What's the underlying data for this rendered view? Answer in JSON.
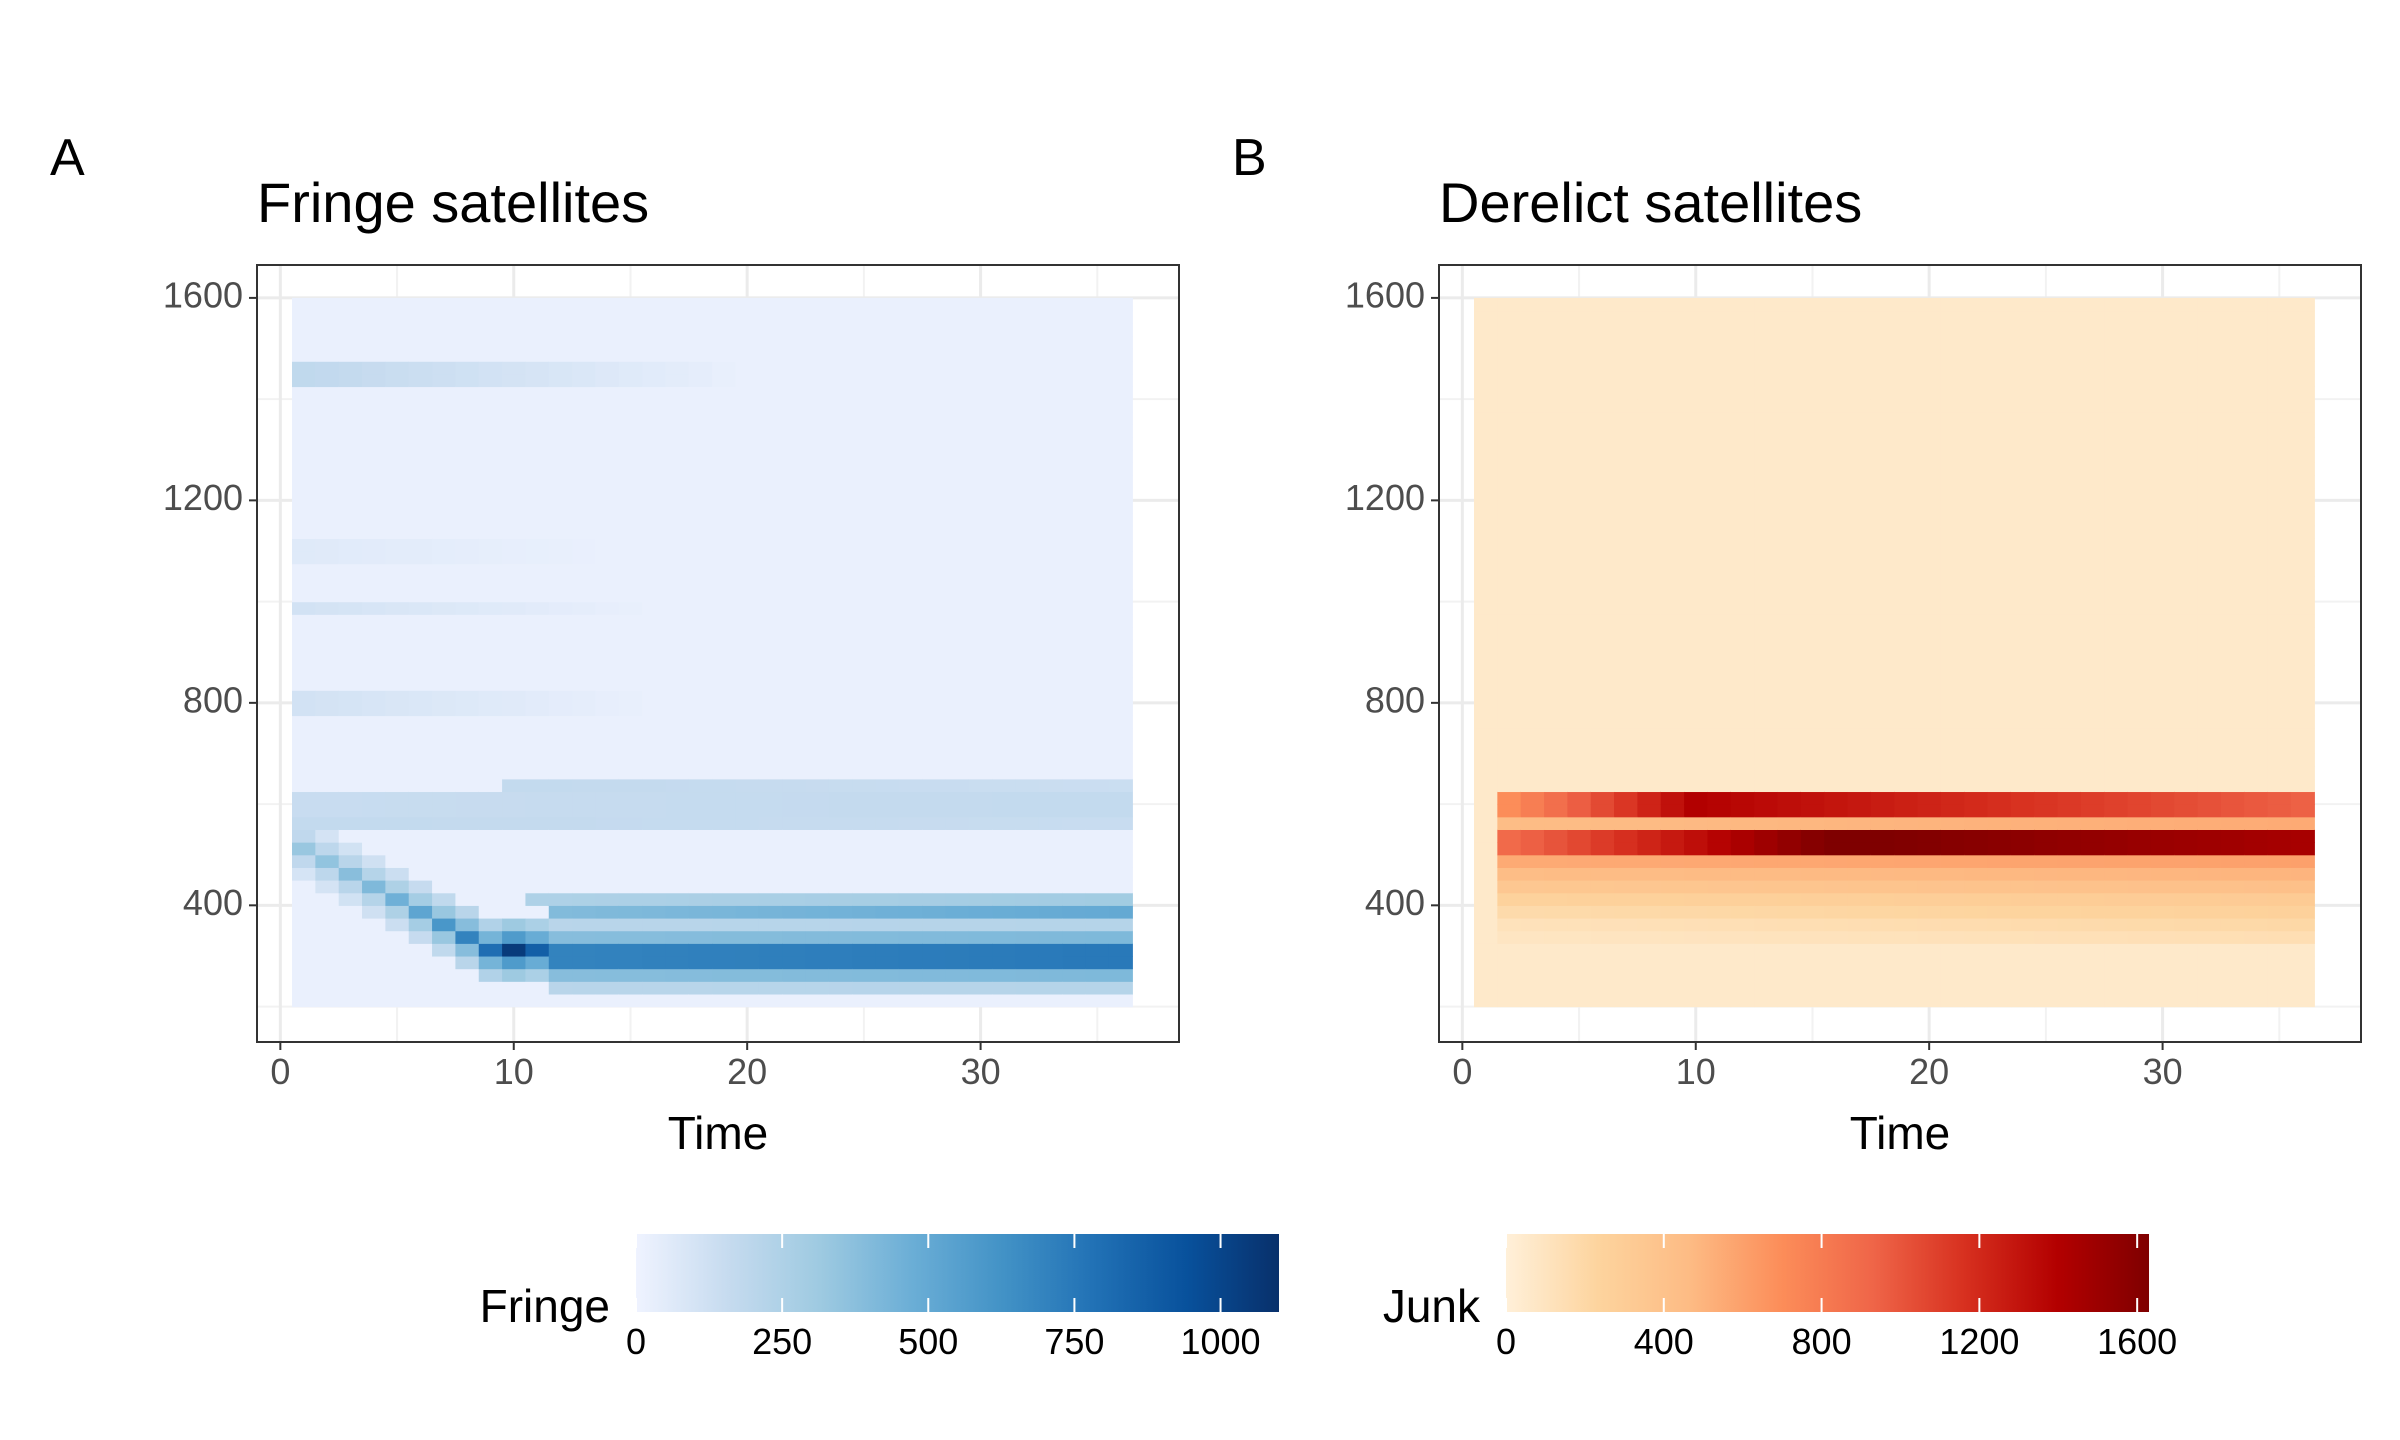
{
  "figure": {
    "legend_position": "bottom"
  },
  "chart_data": [
    {
      "type": "heatmap",
      "panel_label": "A",
      "title": "Fringe satellites",
      "xlabel": "Time",
      "ylabel": "",
      "xlim": [
        -1,
        38.5
      ],
      "ylim": [
        130,
        1665
      ],
      "x_ticks": [
        0,
        10,
        20,
        30
      ],
      "y_ticks": [
        400,
        800,
        1200,
        1600
      ],
      "grid": true,
      "x_range": [
        1,
        36
      ],
      "y_range": [
        200,
        1600
      ],
      "y_bin_width": 25,
      "background_value": 20,
      "ridge": {
        "description": "diagonal band descending from ~500 at t=0 to ~300 by t=11, then persisting",
        "path": [
          [
            1,
            510
          ],
          [
            2,
            480
          ],
          [
            3,
            460
          ],
          [
            4,
            435
          ],
          [
            5,
            410
          ],
          [
            6,
            385
          ],
          [
            7,
            360
          ],
          [
            8,
            340
          ],
          [
            9,
            320
          ],
          [
            10,
            305
          ],
          [
            12,
            300
          ],
          [
            36,
            300
          ]
        ],
        "values": [
          330,
          350,
          380,
          410,
          460,
          520,
          600,
          700,
          800,
          1050,
          700,
          750
        ]
      },
      "bands": [
        {
          "y": 1450,
          "t_from": 1,
          "t_to": 20,
          "value_start": 180,
          "value_end": 20
        },
        {
          "y": 1100,
          "t_from": 1,
          "t_to": 14,
          "value_start": 60,
          "value_end": 20
        },
        {
          "y": 990,
          "t_from": 1,
          "t_to": 16,
          "value_start": 110,
          "value_end": 20
        },
        {
          "y": 800,
          "t_from": 1,
          "t_to": 16,
          "value_start": 110,
          "value_end": 20
        },
        {
          "y": 640,
          "t_from": 10,
          "t_to": 36,
          "value_start": 170,
          "value_end": 140
        },
        {
          "y": 600,
          "t_from": 1,
          "t_to": 36,
          "value_start": 150,
          "value_end": 170
        },
        {
          "y": 560,
          "t_from": 1,
          "t_to": 36,
          "value_start": 170,
          "value_end": 150
        },
        {
          "y": 420,
          "t_from": 11,
          "t_to": 36,
          "value_start": 250,
          "value_end": 300
        },
        {
          "y": 395,
          "t_from": 12,
          "t_to": 36,
          "value_start": 400,
          "value_end": 500
        },
        {
          "y": 280,
          "t_from": 12,
          "t_to": 36,
          "value_start": 300,
          "value_end": 550
        }
      ],
      "colorbar": {
        "title": "Fringe",
        "min": 0,
        "max": 1100,
        "ticks": [
          0,
          250,
          500,
          750,
          1000
        ],
        "tick_labels": [
          "0",
          "250",
          "500",
          "750",
          "1000"
        ],
        "palette": "Blues",
        "colors": [
          "#eff3ff",
          "#c6dbef",
          "#9ecae1",
          "#6baed6",
          "#4292c6",
          "#2171b5",
          "#08519c",
          "#08306b"
        ]
      }
    },
    {
      "type": "heatmap",
      "panel_label": "B",
      "title": "Derelict satellites",
      "xlabel": "Time",
      "ylabel": "",
      "xlim": [
        -1,
        38.5
      ],
      "ylim": [
        130,
        1665
      ],
      "x_ticks": [
        0,
        10,
        20,
        30
      ],
      "y_ticks": [
        400,
        800,
        1200,
        1600
      ],
      "grid": true,
      "x_range": [
        1,
        36
      ],
      "y_range": [
        200,
        1600
      ],
      "y_bin_width": 25,
      "background_value": 60,
      "bands": [
        {
          "y": 600,
          "t_from": 2,
          "t_to": 36,
          "value_start": 700,
          "value_end": 950,
          "peak": 1400,
          "peak_t": 10
        },
        {
          "y": 575,
          "t_from": 2,
          "t_to": 36,
          "value_start": 450,
          "value_end": 550
        },
        {
          "y": 525,
          "t_from": 2,
          "t_to": 36,
          "value_start": 900,
          "value_end": 1450,
          "peak": 1650,
          "peak_t": 16
        },
        {
          "y": 500,
          "t_from": 2,
          "t_to": 36,
          "value_start": 550,
          "value_end": 600
        },
        {
          "y": 475,
          "t_from": 2,
          "t_to": 36,
          "value_start": 450,
          "value_end": 500
        },
        {
          "y": 450,
          "t_from": 2,
          "t_to": 36,
          "value_start": 350,
          "value_end": 420
        },
        {
          "y": 425,
          "t_from": 2,
          "t_to": 36,
          "value_start": 250,
          "value_end": 320
        },
        {
          "y": 400,
          "t_from": 2,
          "t_to": 36,
          "value_start": 180,
          "value_end": 260
        },
        {
          "y": 375,
          "t_from": 2,
          "t_to": 36,
          "value_start": 120,
          "value_end": 200
        },
        {
          "y": 350,
          "t_from": 2,
          "t_to": 36,
          "value_start": 90,
          "value_end": 150
        }
      ],
      "colorbar": {
        "title": "Junk",
        "min": 0,
        "max": 1630,
        "ticks": [
          0,
          400,
          800,
          1200,
          1600
        ],
        "tick_labels": [
          "0",
          "400",
          "800",
          "1200",
          "1600"
        ],
        "palette": "OrRd",
        "colors": [
          "#fff0d9",
          "#fdd49e",
          "#fdbb84",
          "#fc8d59",
          "#ef6548",
          "#d7301f",
          "#b30000",
          "#7f0000"
        ]
      }
    }
  ]
}
